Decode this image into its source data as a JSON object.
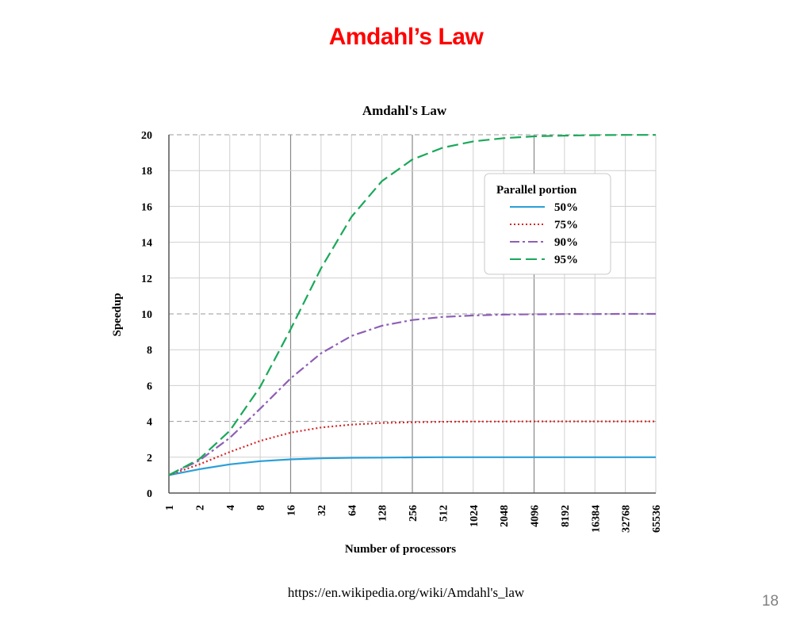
{
  "slide": {
    "title": "Amdahl’s Law",
    "source": "https://en.wikipedia.org/wiki/Amdahl's_law",
    "page_number": "18"
  },
  "chart_data": {
    "type": "line",
    "title": "Amdahl's Law",
    "xlabel": "Number of processors",
    "ylabel": "Speedup",
    "x_scale": "log2",
    "x": [
      1,
      2,
      4,
      8,
      16,
      32,
      64,
      128,
      256,
      512,
      1024,
      2048,
      4096,
      8192,
      16384,
      32768,
      65536
    ],
    "x_tick_labels": [
      "1",
      "2",
      "4",
      "8",
      "16",
      "32",
      "64",
      "128",
      "256",
      "512",
      "1024",
      "2048",
      "4096",
      "8192",
      "16384",
      "32768",
      "65536"
    ],
    "ylim": [
      0,
      20
    ],
    "y_ticks": [
      0,
      2,
      4,
      6,
      8,
      10,
      12,
      14,
      16,
      18,
      20
    ],
    "grid": true,
    "legend_title": "Parallel portion",
    "legend_position": "top-right",
    "series": [
      {
        "name": "50%",
        "color": "#2a9fd8",
        "dash": "solid",
        "values": [
          1.0,
          1.33,
          1.6,
          1.78,
          1.88,
          1.94,
          1.97,
          1.98,
          1.99,
          2.0,
          2.0,
          2.0,
          2.0,
          2.0,
          2.0,
          2.0,
          2.0
        ]
      },
      {
        "name": "75%",
        "color": "#d62728",
        "dash": "dotted",
        "values": [
          1.0,
          1.6,
          2.29,
          2.91,
          3.37,
          3.66,
          3.82,
          3.91,
          3.95,
          3.98,
          3.99,
          3.99,
          4.0,
          4.0,
          4.0,
          4.0,
          4.0
        ]
      },
      {
        "name": "90%",
        "color": "#8e5fb5",
        "dash": "dashdot",
        "values": [
          1.0,
          1.82,
          3.08,
          4.71,
          6.4,
          7.8,
          8.77,
          9.34,
          9.66,
          9.83,
          9.91,
          9.96,
          9.98,
          9.99,
          9.99,
          10.0,
          10.0
        ]
      },
      {
        "name": "95%",
        "color": "#1aa85a",
        "dash": "dashed",
        "values": [
          1.0,
          1.9,
          3.48,
          5.93,
          9.14,
          12.55,
          15.42,
          17.41,
          18.62,
          19.28,
          19.63,
          19.81,
          19.91,
          19.95,
          19.98,
          19.99,
          19.99
        ]
      }
    ]
  }
}
